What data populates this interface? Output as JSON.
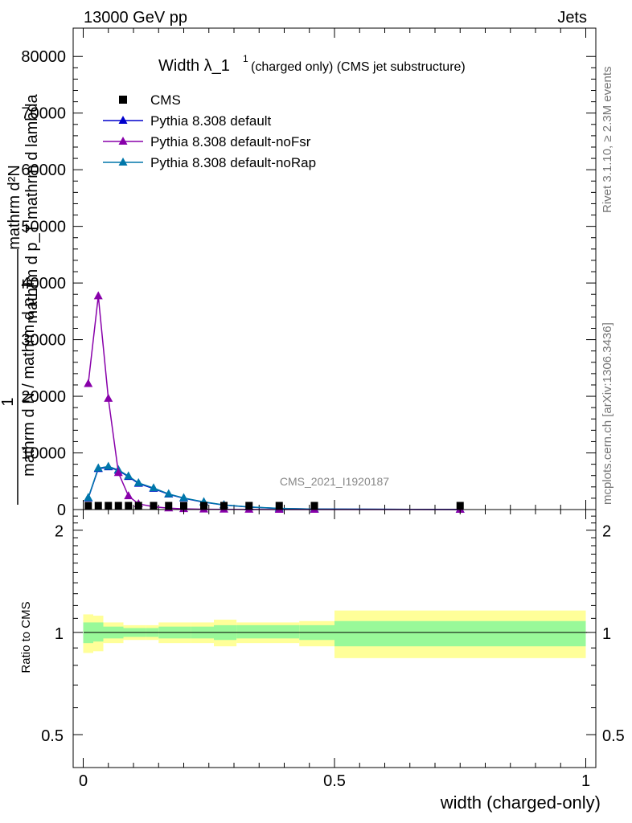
{
  "header": {
    "left": "13000 GeV pp",
    "right": "Jets"
  },
  "title": {
    "main": "Width λ_1",
    "superscript": "1",
    "sub": "(charged only) (CMS jet substructure)"
  },
  "side_labels": {
    "rivet": "Rivet 3.1.10, ≥ 2.3M events",
    "mcplots": "mcplots.cern.ch [arXiv:1306.3436]"
  },
  "watermark": "CMS_2021_I1920187",
  "ylabel_main": {
    "line1": "mathrm d²N",
    "line2": "mathrm d p_T mathrm d lambda",
    "numer": "1",
    "denom": "mathrm d N / mathrm d p_T"
  },
  "ylabel_ratio": "Ratio to CMS",
  "xlabel": "width (charged-only)",
  "colors": {
    "default": "#0000cc",
    "noFsr": "#8800aa",
    "noRap": "#0077aa",
    "band_inner": "#99f999",
    "band_outer": "#ffff99",
    "data": "#000000"
  },
  "chart_data": [
    {
      "type": "line",
      "panel": "main",
      "xlim": [
        -0.02,
        1.02
      ],
      "ylim": [
        0,
        85000
      ],
      "yticks": [
        0,
        10000,
        20000,
        30000,
        40000,
        50000,
        60000,
        70000,
        80000
      ],
      "ytick_labels": [
        "0",
        "10000",
        "20000",
        "30000",
        "40000",
        "50000",
        "60000",
        "70000",
        "80000"
      ],
      "legend": [
        "CMS",
        "Pythia 8.308 default",
        "Pythia 8.308 default-noFsr",
        "Pythia 8.308 default-noRap"
      ],
      "legend_position": "top-left",
      "series": [
        {
          "name": "CMS",
          "marker": "square",
          "x": [
            0.01,
            0.03,
            0.05,
            0.07,
            0.09,
            0.11,
            0.14,
            0.17,
            0.2,
            0.24,
            0.28,
            0.33,
            0.39,
            0.46,
            0.75
          ],
          "values": [
            300,
            300,
            300,
            300,
            250,
            200,
            150,
            120,
            100,
            80,
            60,
            40,
            25,
            15,
            5
          ]
        },
        {
          "name": "Pythia 8.308 default",
          "marker": "triangle",
          "x": [
            0.01,
            0.03,
            0.05,
            0.07,
            0.09,
            0.11,
            0.14,
            0.17,
            0.2,
            0.24,
            0.28,
            0.33,
            0.39,
            0.46,
            0.75
          ],
          "values": [
            2000,
            7200,
            7500,
            6900,
            5800,
            4600,
            3700,
            2700,
            2000,
            1300,
            800,
            450,
            200,
            80,
            10
          ]
        },
        {
          "name": "Pythia 8.308 default-noFsr",
          "marker": "triangle",
          "x": [
            0.01,
            0.03,
            0.05,
            0.07,
            0.09,
            0.11,
            0.14,
            0.17,
            0.2,
            0.24,
            0.28,
            0.33,
            0.39,
            0.46,
            0.75
          ],
          "values": [
            22200,
            37700,
            19600,
            6500,
            2400,
            1000,
            500,
            250,
            120,
            60,
            30,
            15,
            8,
            4,
            1
          ]
        },
        {
          "name": "Pythia 8.308 default-noRap",
          "marker": "triangle",
          "x": [
            0.01,
            0.03,
            0.05,
            0.07,
            0.09,
            0.11,
            0.14,
            0.17,
            0.2,
            0.24,
            0.28,
            0.33,
            0.39,
            0.46,
            0.75
          ],
          "values": [
            2100,
            7300,
            7600,
            7000,
            5900,
            4700,
            3800,
            2750,
            2050,
            1350,
            820,
            460,
            210,
            85,
            10
          ]
        }
      ]
    },
    {
      "type": "area",
      "panel": "ratio",
      "xlim": [
        -0.02,
        1.02
      ],
      "ylim": [
        0.4,
        2.3
      ],
      "log_y": true,
      "yticks": [
        0.5,
        1,
        2
      ],
      "ytick_labels": [
        "0.5",
        "1",
        "2"
      ],
      "xticks": [
        0,
        0.5,
        1
      ],
      "xtick_labels": [
        "0",
        "0.5",
        "1"
      ],
      "bins": [
        {
          "x0": 0.0,
          "x1": 0.02,
          "inner": [
            0.93,
            1.07
          ],
          "outer": [
            0.87,
            1.13
          ]
        },
        {
          "x0": 0.02,
          "x1": 0.04,
          "inner": [
            0.94,
            1.07
          ],
          "outer": [
            0.88,
            1.12
          ]
        },
        {
          "x0": 0.04,
          "x1": 0.06,
          "inner": [
            0.96,
            1.04
          ],
          "outer": [
            0.93,
            1.07
          ]
        },
        {
          "x0": 0.06,
          "x1": 0.08,
          "inner": [
            0.96,
            1.04
          ],
          "outer": [
            0.93,
            1.07
          ]
        },
        {
          "x0": 0.08,
          "x1": 0.1,
          "inner": [
            0.97,
            1.03
          ],
          "outer": [
            0.95,
            1.05
          ]
        },
        {
          "x0": 0.1,
          "x1": 0.125,
          "inner": [
            0.97,
            1.03
          ],
          "outer": [
            0.95,
            1.05
          ]
        },
        {
          "x0": 0.125,
          "x1": 0.15,
          "inner": [
            0.97,
            1.03
          ],
          "outer": [
            0.95,
            1.05
          ]
        },
        {
          "x0": 0.15,
          "x1": 0.18,
          "inner": [
            0.96,
            1.04
          ],
          "outer": [
            0.93,
            1.07
          ]
        },
        {
          "x0": 0.18,
          "x1": 0.215,
          "inner": [
            0.96,
            1.04
          ],
          "outer": [
            0.93,
            1.07
          ]
        },
        {
          "x0": 0.215,
          "x1": 0.26,
          "inner": [
            0.96,
            1.04
          ],
          "outer": [
            0.93,
            1.07
          ]
        },
        {
          "x0": 0.26,
          "x1": 0.305,
          "inner": [
            0.95,
            1.05
          ],
          "outer": [
            0.91,
            1.09
          ]
        },
        {
          "x0": 0.305,
          "x1": 0.36,
          "inner": [
            0.96,
            1.05
          ],
          "outer": [
            0.93,
            1.07
          ]
        },
        {
          "x0": 0.36,
          "x1": 0.43,
          "inner": [
            0.96,
            1.05
          ],
          "outer": [
            0.93,
            1.07
          ]
        },
        {
          "x0": 0.43,
          "x1": 0.5,
          "inner": [
            0.95,
            1.05
          ],
          "outer": [
            0.91,
            1.08
          ]
        },
        {
          "x0": 0.5,
          "x1": 1.0,
          "inner": [
            0.91,
            1.08
          ],
          "outer": [
            0.84,
            1.16
          ]
        }
      ]
    }
  ]
}
